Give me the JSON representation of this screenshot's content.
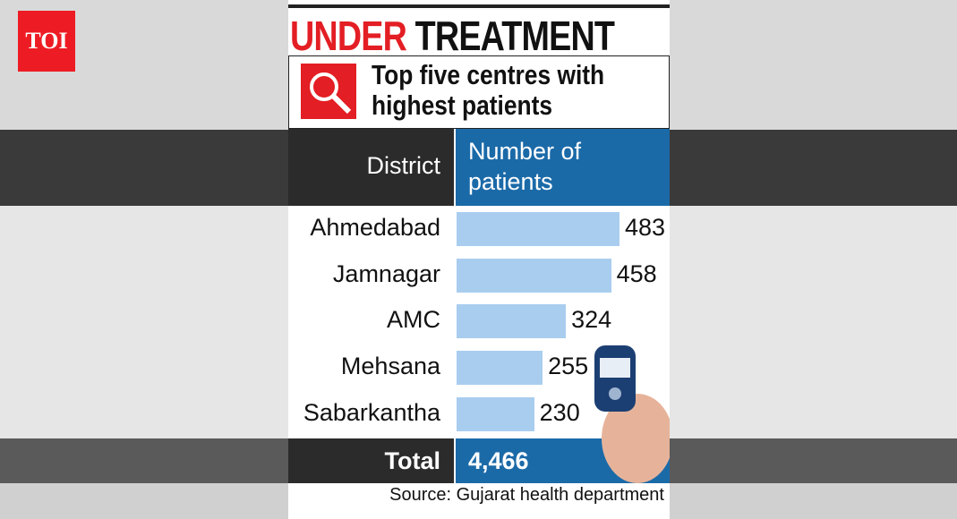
{
  "logo": "TOI",
  "chart_data": {
    "type": "bar",
    "title": {
      "highlight": "UNDER",
      "rest": "TREATMENT"
    },
    "subtitle": "Top five centres with highest patients",
    "column_headers": [
      "District",
      "Number of patients"
    ],
    "categories": [
      "Ahmedabad",
      "Jamnagar",
      "AMC",
      "Mehsana",
      "Sabarkantha"
    ],
    "values": [
      483,
      458,
      324,
      255,
      230
    ],
    "color": "#a9cdef",
    "total_label": "Total",
    "total": {
      "value": 4466,
      "label": "4,466"
    },
    "source": "Source: Gujarat health department"
  }
}
